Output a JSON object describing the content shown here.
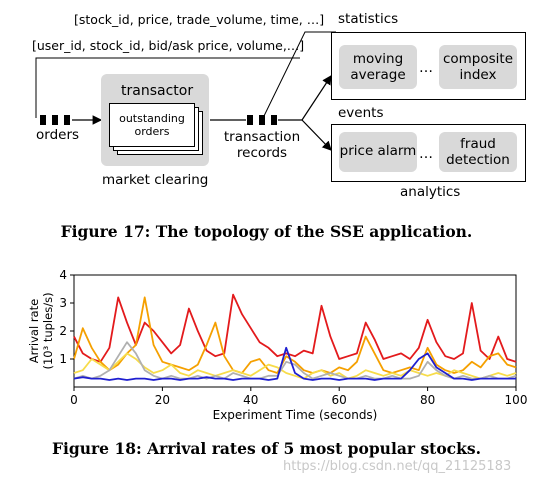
{
  "figure17": {
    "top_schema": "[stock_id, price, trade_volume, time, …]",
    "order_schema": "[user_id, stock_id,  bid/ask price, volume,…]",
    "orders_label": "orders",
    "transactor_label": "transactor",
    "outstanding_label_line1": "outstanding",
    "outstanding_label_line2": "orders",
    "market_clearing_label": "market clearing",
    "transaction_label_line1": "transaction",
    "transaction_label_line2": "records",
    "statistics_label": "statistics",
    "moving_average_line1": "moving",
    "moving_average_line2": "average",
    "composite_index_line1": "composite",
    "composite_index_line2": "index",
    "events_label": "events",
    "price_alarm_label": "price alarm",
    "fraud_detection_line1": "fraud",
    "fraud_detection_line2": "detection",
    "ellipsis": "…",
    "analytics_label": "analytics",
    "caption": "Figure 17: The topology of the SSE application."
  },
  "figure18": {
    "caption": "Figure 18: Arrival rates of 5 most popular stocks.",
    "watermark": "https://blog.csdn.net/qq_21125183"
  },
  "chart_data": {
    "type": "line",
    "xlabel": "Experiment Time (seconds)",
    "ylabel_line1": "Arrival rate",
    "ylabel_line2": "(10³ tuples/s)",
    "xlim": [
      0,
      100
    ],
    "ylim": [
      0,
      4
    ],
    "x_ticks": [
      "0",
      "20",
      "40",
      "60",
      "80",
      "100"
    ],
    "y_ticks": [
      "1",
      "2",
      "3",
      "4"
    ],
    "grid": false,
    "x": [
      0,
      2,
      4,
      6,
      8,
      10,
      12,
      14,
      16,
      18,
      20,
      22,
      24,
      26,
      28,
      30,
      32,
      34,
      36,
      38,
      40,
      42,
      44,
      46,
      48,
      50,
      52,
      54,
      56,
      58,
      60,
      62,
      64,
      66,
      68,
      70,
      72,
      74,
      76,
      78,
      80,
      82,
      84,
      86,
      88,
      90,
      92,
      94,
      96,
      98,
      100
    ],
    "series": [
      {
        "color": "#e31a1c",
        "values": [
          1.8,
          1.2,
          1.0,
          0.9,
          1.4,
          3.2,
          2.3,
          1.5,
          2.3,
          2.0,
          1.6,
          1.2,
          1.5,
          2.8,
          2.0,
          1.3,
          1.1,
          1.2,
          3.3,
          2.6,
          2.1,
          1.6,
          1.4,
          1.1,
          1.2,
          1.1,
          1.3,
          1.2,
          2.9,
          1.8,
          1.0,
          1.1,
          1.2,
          2.3,
          1.7,
          1.0,
          1.1,
          1.2,
          1.0,
          1.4,
          2.4,
          1.6,
          1.1,
          1.0,
          1.2,
          3.0,
          1.3,
          1.0,
          1.8,
          1.0,
          0.9
        ]
      },
      {
        "color": "#f5a000",
        "values": [
          1.0,
          2.1,
          1.4,
          0.9,
          0.6,
          0.8,
          1.2,
          1.5,
          3.2,
          1.5,
          0.9,
          0.8,
          0.7,
          0.6,
          0.8,
          1.5,
          2.3,
          1.1,
          0.6,
          0.5,
          0.9,
          1.0,
          0.6,
          0.5,
          1.1,
          0.9,
          0.6,
          0.5,
          0.6,
          0.5,
          0.7,
          0.6,
          0.9,
          1.8,
          1.2,
          0.6,
          0.5,
          0.6,
          0.7,
          0.6,
          1.4,
          0.8,
          0.6,
          0.5,
          0.6,
          0.9,
          0.7,
          1.1,
          1.2,
          0.8,
          0.7
        ]
      },
      {
        "color": "#f7dc4a",
        "values": [
          0.5,
          0.6,
          1.0,
          0.8,
          0.6,
          0.9,
          1.2,
          1.0,
          0.7,
          0.5,
          0.6,
          0.8,
          0.5,
          0.4,
          0.6,
          0.5,
          0.4,
          0.5,
          0.6,
          0.5,
          0.4,
          0.6,
          0.8,
          0.7,
          0.5,
          0.4,
          0.3,
          0.5,
          0.6,
          0.4,
          0.5,
          0.3,
          0.4,
          0.6,
          0.5,
          0.4,
          0.5,
          0.4,
          0.6,
          0.5,
          0.4,
          0.5,
          0.4,
          0.6,
          0.5,
          0.4,
          0.3,
          0.4,
          0.5,
          0.4,
          0.5
        ]
      },
      {
        "color": "#b0b0b0",
        "values": [
          0.3,
          0.4,
          0.3,
          0.4,
          0.6,
          1.1,
          1.6,
          1.2,
          0.6,
          0.4,
          0.3,
          0.4,
          0.3,
          0.3,
          0.4,
          0.3,
          0.4,
          0.3,
          0.5,
          0.4,
          0.3,
          0.3,
          0.4,
          0.4,
          0.9,
          0.8,
          0.5,
          0.3,
          0.4,
          0.5,
          0.4,
          0.3,
          0.3,
          0.4,
          0.3,
          0.3,
          0.4,
          0.3,
          0.3,
          0.4,
          0.9,
          0.6,
          0.4,
          0.3,
          0.4,
          0.3,
          0.3,
          0.4,
          0.3,
          0.3,
          0.4
        ]
      },
      {
        "color": "#1f1fd0",
        "values": [
          0.3,
          0.35,
          0.3,
          0.3,
          0.25,
          0.3,
          0.25,
          0.3,
          0.3,
          0.25,
          0.3,
          0.3,
          0.25,
          0.3,
          0.3,
          0.35,
          0.3,
          0.3,
          0.25,
          0.3,
          0.3,
          0.3,
          0.25,
          0.3,
          1.4,
          0.5,
          0.3,
          0.25,
          0.3,
          0.3,
          0.25,
          0.3,
          0.3,
          0.3,
          0.25,
          0.3,
          0.3,
          0.3,
          0.6,
          1.0,
          1.2,
          0.7,
          0.5,
          0.3,
          0.3,
          0.25,
          0.3,
          0.3,
          0.3,
          0.3,
          0.3
        ]
      }
    ]
  }
}
